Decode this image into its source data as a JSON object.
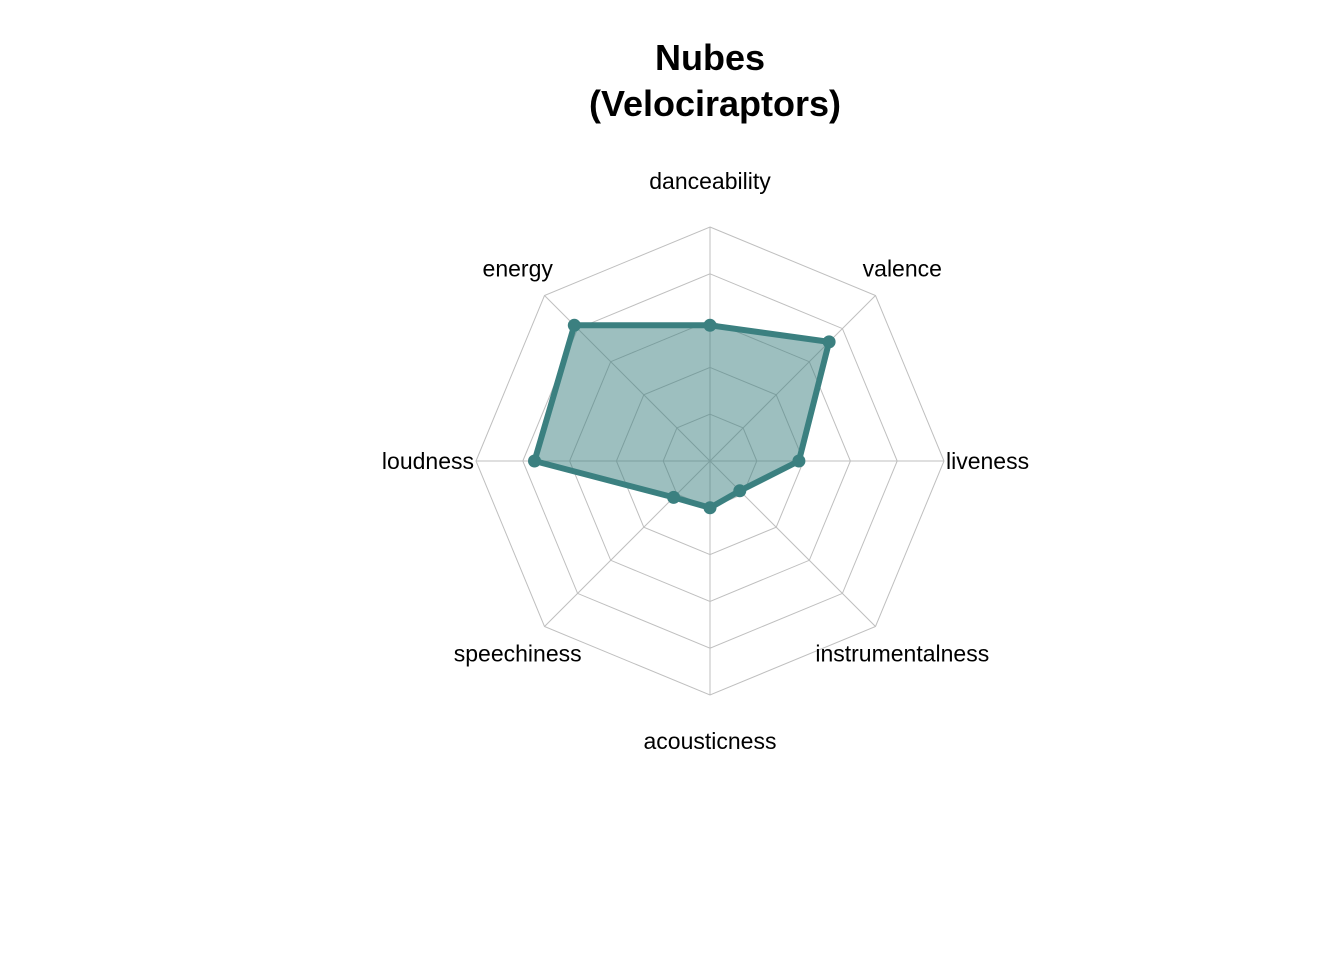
{
  "chart_data": {
    "type": "radar",
    "title_lines": [
      "Nubes",
      "(Velociraptors)"
    ],
    "axes": [
      "danceability",
      "valence",
      "liveness",
      "instrumentalness",
      "acousticness",
      "speechiness",
      "loudness",
      "energy"
    ],
    "series": [
      {
        "values": [
          0.58,
          0.72,
          0.38,
          0.18,
          0.2,
          0.22,
          0.75,
          0.82
        ],
        "color": "#3b8080",
        "fill": "#3b8080",
        "fill_opacity": 0.5
      }
    ],
    "range": [
      0,
      1
    ],
    "grid_levels": 5,
    "grid": true,
    "grid_color": "#bfbfbf",
    "legend": "none"
  }
}
